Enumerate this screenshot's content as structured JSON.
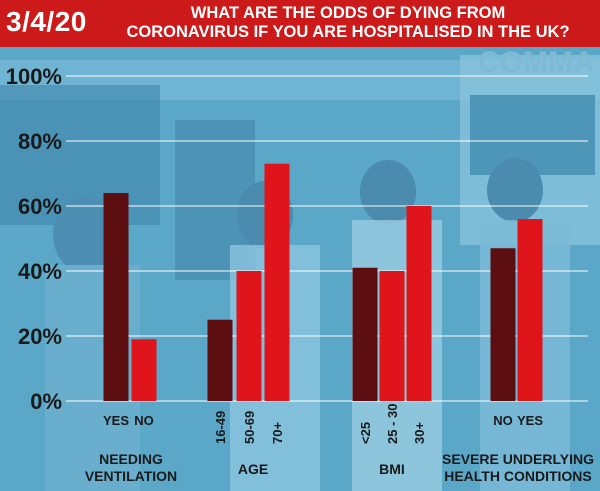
{
  "date": "3/4/20",
  "title_lines": [
    "WHAT ARE THE ODDS OF DYING FROM",
    "CORONAVIRUS IF YOU ARE HOSPITALISED IN THE UK?"
  ],
  "background_text": "COMMA",
  "colors": {
    "header": "#cc1a1a",
    "dark_bar": "#5c0e10",
    "red_bar": "#e0151b",
    "background": "#5aa7c8",
    "grid": "#ffffff",
    "text": "#1a1a1a"
  },
  "chart_data": {
    "type": "bar",
    "title": "WHAT ARE THE ODDS OF DYING FROM CORONAVIRUS IF YOU ARE HOSPITALISED IN THE UK?",
    "ylim": [
      0,
      100
    ],
    "yticks": [
      "0%",
      "20%",
      "40%",
      "60%",
      "80%",
      "100%"
    ],
    "ytick_values": [
      0,
      20,
      40,
      60,
      80,
      100
    ],
    "grid": true,
    "groups": [
      {
        "name_lines": [
          "NEEDING",
          "VENTILATION"
        ],
        "bars": [
          {
            "label": "YES",
            "value": 64,
            "color": "dark"
          },
          {
            "label": "NO",
            "value": 19,
            "color": "red"
          }
        ]
      },
      {
        "name_lines": [
          "AGE"
        ],
        "bars": [
          {
            "label": "16-49",
            "value": 25,
            "color": "dark"
          },
          {
            "label": "50-69",
            "value": 40,
            "color": "red"
          },
          {
            "label": "70+",
            "value": 73,
            "color": "red"
          }
        ]
      },
      {
        "name_lines": [
          "BMI"
        ],
        "bars": [
          {
            "label": "<25",
            "value": 41,
            "color": "dark"
          },
          {
            "label": "25 - 30",
            "value": 40,
            "color": "red"
          },
          {
            "label": "30+",
            "value": 60,
            "color": "red"
          }
        ]
      },
      {
        "name_lines": [
          "SEVERE UNDERLYING",
          "HEALTH CONDITIONS"
        ],
        "bars": [
          {
            "label": "NO",
            "value": 47,
            "color": "dark"
          },
          {
            "label": "YES",
            "value": 56,
            "color": "red"
          }
        ]
      }
    ]
  }
}
